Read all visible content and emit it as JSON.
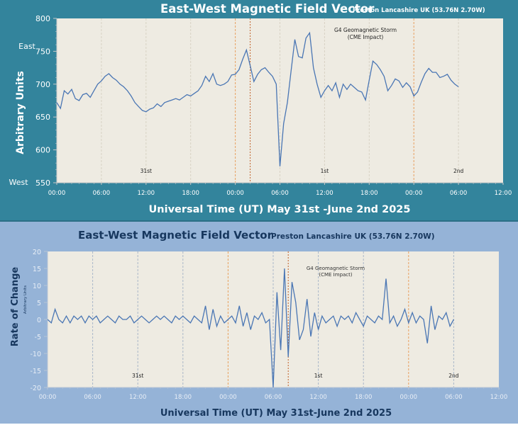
{
  "colors": {
    "top_bg": "#33849c",
    "bottom_bg": "#95b3d7",
    "plot_bg": "#eeebe2",
    "line": "#4a76b4",
    "marker_orange": "#e8a060",
    "marker_dark": "#c0602a",
    "grid": "#c8c8c8"
  },
  "chart_data": [
    {
      "type": "line",
      "title": "East-West Magnetic Field Vector",
      "subtitle": "Preston Lancashire UK (53.76N 2.70W)",
      "xlabel": "Universal Time (UT) May 31st -June 2nd 2025",
      "ylabel": "Arbitrary Units",
      "ylim": [
        550,
        800
      ],
      "yticks": [
        "550",
        "600",
        "650",
        "700",
        "750",
        "800"
      ],
      "ylabel_top": "East",
      "ylabel_bottom": "West",
      "xlim_hours": [
        0,
        60
      ],
      "xticks": [
        "00:00",
        "06:00",
        "12:00",
        "18:00",
        "00:00",
        "06:00",
        "12:00",
        "18:00",
        "00:00",
        "06:00",
        "12:00"
      ],
      "day_labels": [
        {
          "text": "31st",
          "hour": 12
        },
        {
          "text": "1st",
          "hour": 36
        },
        {
          "text": "2nd",
          "hour": 54
        }
      ],
      "annotation": {
        "line1": "G4 Geomagnetic Storm",
        "line2": "(CME Impact)",
        "hour": 36
      },
      "event_lines_hours": [
        24,
        26,
        48
      ],
      "grid": true,
      "series": [
        {
          "name": "East-West",
          "x": [
            0,
            0.5,
            1,
            1.5,
            2,
            2.5,
            3,
            3.5,
            4,
            4.5,
            5,
            5.5,
            6,
            6.5,
            7,
            7.5,
            8,
            8.5,
            9,
            9.5,
            10,
            10.5,
            11,
            11.5,
            12,
            12.5,
            13,
            13.5,
            14,
            14.5,
            15,
            15.5,
            16,
            16.5,
            17,
            17.5,
            18,
            18.5,
            19,
            19.5,
            20,
            20.5,
            21,
            21.5,
            22,
            22.5,
            23,
            23.5,
            24,
            24.5,
            25,
            25.5,
            26,
            26.5,
            27,
            27.5,
            28,
            28.5,
            29,
            29.5,
            30,
            30.5,
            31,
            31.5,
            32,
            32.5,
            33,
            33.5,
            34,
            34.5,
            35,
            35.5,
            36,
            36.5,
            37,
            37.5,
            38,
            38.5,
            39,
            39.5,
            40,
            40.5,
            41,
            41.5,
            42,
            42.5,
            43,
            43.5,
            44,
            44.5,
            45,
            45.5,
            46,
            46.5,
            47,
            47.5,
            48,
            48.5,
            49,
            49.5,
            50,
            50.5,
            51,
            51.5,
            52,
            52.5,
            53,
            53.5,
            54
          ],
          "values": [
            672,
            663,
            690,
            685,
            692,
            678,
            675,
            684,
            686,
            680,
            690,
            700,
            705,
            712,
            716,
            710,
            706,
            700,
            696,
            690,
            682,
            672,
            666,
            660,
            658,
            662,
            664,
            670,
            666,
            672,
            674,
            676,
            678,
            676,
            680,
            684,
            682,
            686,
            690,
            698,
            712,
            704,
            716,
            700,
            698,
            700,
            704,
            714,
            715,
            722,
            738,
            752,
            728,
            704,
            715,
            722,
            725,
            718,
            712,
            700,
            575,
            640,
            672,
            720,
            768,
            742,
            740,
            770,
            778,
            725,
            700,
            680,
            690,
            698,
            690,
            702,
            680,
            700,
            692,
            700,
            695,
            690,
            688,
            676,
            706,
            735,
            730,
            722,
            712,
            690,
            698,
            708,
            705,
            695,
            702,
            696,
            682,
            688,
            703,
            716,
            724,
            718,
            718,
            710,
            712,
            715,
            706,
            700,
            696
          ],
          "note": "approximate digitization"
        }
      ]
    },
    {
      "type": "line",
      "title": "East-West Magnetic Field Vector",
      "subtitle": "Preston Lancashire UK (53.76N 2.70W)",
      "xlabel": "Universal Time (UT) May 31st-June 2nd 2025",
      "ylabel": "Rate of Change",
      "ylabel_sub": "Arbitrary Units",
      "ylim": [
        -20,
        20
      ],
      "yticks": [
        "-20",
        "-15",
        "-10",
        "-5",
        "0",
        "5",
        "10",
        "15",
        "20"
      ],
      "xlim_hours": [
        0,
        60
      ],
      "xticks": [
        "00:00",
        "06:00",
        "12:00",
        "18:00",
        "00:00",
        "06:00",
        "12:00",
        "18:00",
        "00:00",
        "06:00",
        "12:00"
      ],
      "day_labels": [
        {
          "text": "31st",
          "hour": 12
        },
        {
          "text": "1st",
          "hour": 36
        },
        {
          "text": "2nd",
          "hour": 54
        }
      ],
      "annotation": {
        "line1": "G4 Geomagnetic Storm",
        "line2": "(CME Impact)",
        "hour": 36
      },
      "event_lines_hours": [
        24,
        32,
        48
      ],
      "grid": true,
      "series": [
        {
          "name": "Rate of Change",
          "x": [
            0,
            0.5,
            1,
            1.5,
            2,
            2.5,
            3,
            3.5,
            4,
            4.5,
            5,
            5.5,
            6,
            6.5,
            7,
            7.5,
            8,
            8.5,
            9,
            9.5,
            10,
            10.5,
            11,
            11.5,
            12,
            12.5,
            13,
            13.5,
            14,
            14.5,
            15,
            15.5,
            16,
            16.5,
            17,
            17.5,
            18,
            18.5,
            19,
            19.5,
            20,
            20.5,
            21,
            21.5,
            22,
            22.5,
            23,
            23.5,
            24,
            24.5,
            25,
            25.5,
            26,
            26.5,
            27,
            27.5,
            28,
            28.5,
            29,
            29.5,
            30,
            30.5,
            31,
            31.5,
            32,
            32.5,
            33,
            33.5,
            34,
            34.5,
            35,
            35.5,
            36,
            36.5,
            37,
            37.5,
            38,
            38.5,
            39,
            39.5,
            40,
            40.5,
            41,
            41.5,
            42,
            42.5,
            43,
            43.5,
            44,
            44.5,
            45,
            45.5,
            46,
            46.5,
            47,
            47.5,
            48,
            48.5,
            49,
            49.5,
            50,
            50.5,
            51,
            51.5,
            52,
            52.5,
            53,
            53.5,
            54
          ],
          "values": [
            0,
            -1,
            3,
            0,
            -1,
            1,
            -1,
            1,
            0,
            1,
            -1,
            1,
            0,
            1,
            -1,
            0,
            1,
            0,
            -1,
            1,
            0,
            0,
            1,
            -1,
            0,
            1,
            0,
            -1,
            0,
            1,
            0,
            1,
            0,
            -1,
            1,
            0,
            1,
            0,
            -1,
            1,
            0,
            -1,
            4,
            -3,
            3,
            -2,
            1,
            -1,
            0,
            1,
            -1,
            4,
            -2,
            2,
            -3,
            1,
            0,
            2,
            -1,
            0,
            -20,
            8,
            -9,
            15,
            -11,
            11,
            5,
            -6,
            -3,
            6,
            -5,
            2,
            -3,
            1,
            -1,
            0,
            1,
            -2,
            1,
            0,
            1,
            -1,
            2,
            0,
            -2,
            1,
            0,
            -1,
            1,
            0,
            12,
            -1,
            1,
            -2,
            0,
            3,
            -1,
            2,
            -1,
            1,
            0,
            -7,
            4,
            -3,
            1,
            0,
            2,
            -2,
            0
          ]
        }
      ]
    }
  ]
}
